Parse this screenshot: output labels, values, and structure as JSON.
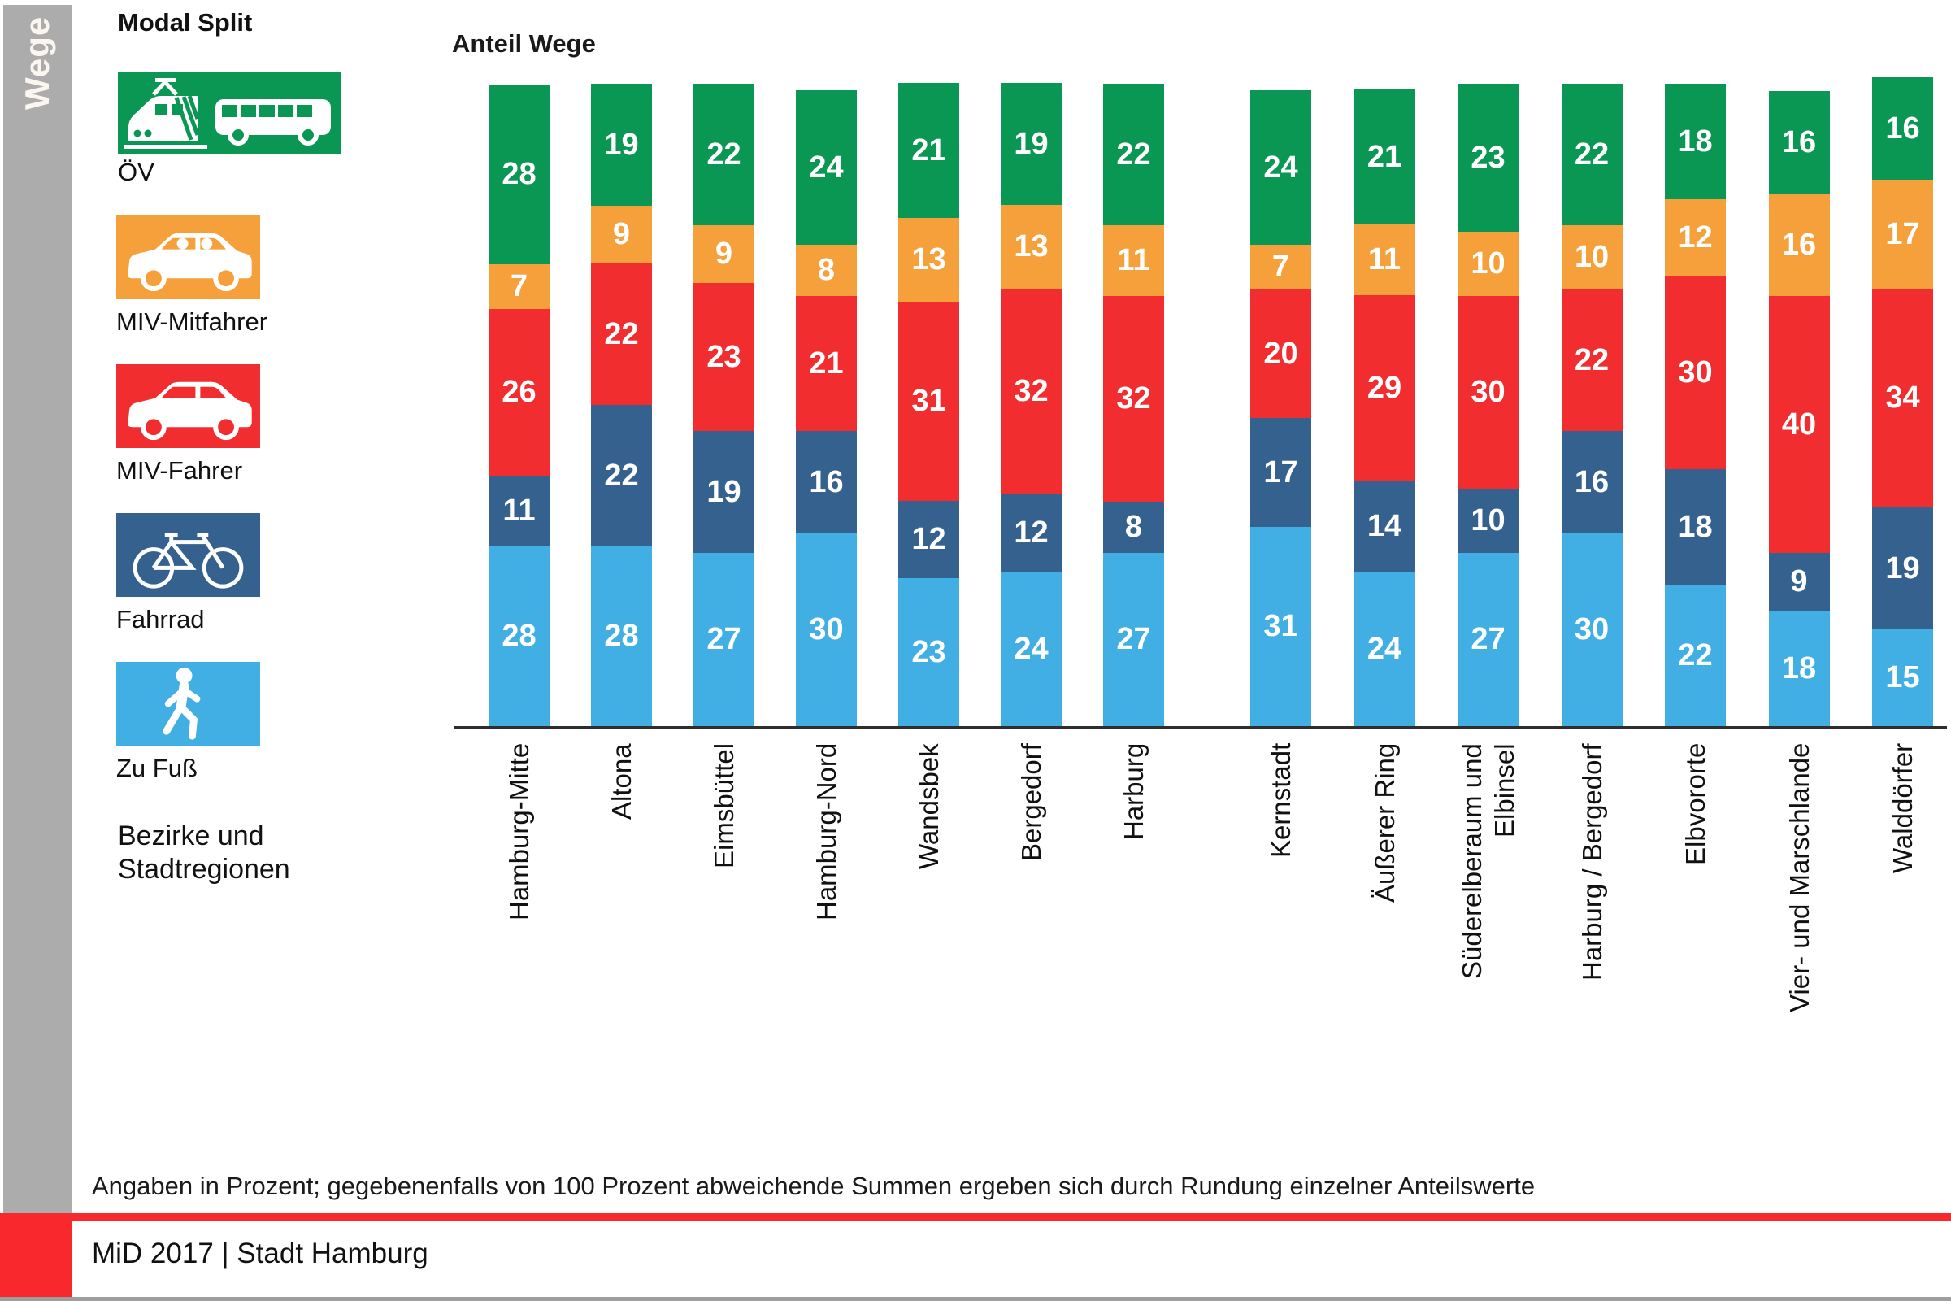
{
  "sidebar": {
    "label": "Wege"
  },
  "legend": {
    "title": "Modal Split",
    "items": [
      {
        "id": "oev",
        "label": "ÖV",
        "color": "#0a9653"
      },
      {
        "id": "miv_mitfahrer",
        "label": "MIV-Mitfahrer",
        "color": "#f5a03a"
      },
      {
        "id": "miv_fahrer",
        "label": "MIV-Fahrer",
        "color": "#f22d30"
      },
      {
        "id": "fahrrad",
        "label": "Fahrrad",
        "color": "#35618e"
      },
      {
        "id": "zu_fuss",
        "label": "Zu Fuß",
        "color": "#41afe4"
      }
    ],
    "axis_caption": [
      "Bezirke und",
      "Stadtregionen"
    ]
  },
  "chart_data": {
    "type": "bar",
    "stacked": true,
    "title": "Anteil Wege",
    "unit": "percent",
    "ylim": [
      0,
      100
    ],
    "legend_position": "left",
    "series_top_to_bottom": [
      "oev",
      "miv_mitfahrer",
      "miv_fahrer",
      "fahrrad",
      "zu_fuss"
    ],
    "series_names": {
      "oev": "ÖV",
      "miv_mitfahrer": "MIV-Mitfahrer",
      "miv_fahrer": "MIV-Fahrer",
      "fahrrad": "Fahrrad",
      "zu_fuss": "Zu Fuß"
    },
    "bars": [
      {
        "id": "hamburg-mitte",
        "group": "Bezirke",
        "label": [
          "Hamburg-Mitte"
        ],
        "values": {
          "oev": 28,
          "miv_mitfahrer": 7,
          "miv_fahrer": 26,
          "fahrrad": 11,
          "zu_fuss": 28
        }
      },
      {
        "id": "altona",
        "group": "Bezirke",
        "label": [
          "Altona"
        ],
        "values": {
          "oev": 19,
          "miv_mitfahrer": 9,
          "miv_fahrer": 22,
          "fahrrad": 22,
          "zu_fuss": 28
        }
      },
      {
        "id": "eimsbuettel",
        "group": "Bezirke",
        "label": [
          "Eimsbüttel"
        ],
        "values": {
          "oev": 22,
          "miv_mitfahrer": 9,
          "miv_fahrer": 23,
          "fahrrad": 19,
          "zu_fuss": 27
        }
      },
      {
        "id": "hamburg-nord",
        "group": "Bezirke",
        "label": [
          "Hamburg-Nord"
        ],
        "values": {
          "oev": 24,
          "miv_mitfahrer": 8,
          "miv_fahrer": 21,
          "fahrrad": 16,
          "zu_fuss": 30
        }
      },
      {
        "id": "wandsbek",
        "group": "Bezirke",
        "label": [
          "Wandsbek"
        ],
        "values": {
          "oev": 21,
          "miv_mitfahrer": 13,
          "miv_fahrer": 31,
          "fahrrad": 12,
          "zu_fuss": 23
        }
      },
      {
        "id": "bergedorf",
        "group": "Bezirke",
        "label": [
          "Bergedorf"
        ],
        "values": {
          "oev": 19,
          "miv_mitfahrer": 13,
          "miv_fahrer": 32,
          "fahrrad": 12,
          "zu_fuss": 24
        }
      },
      {
        "id": "harburg",
        "group": "Bezirke",
        "label": [
          "Harburg"
        ],
        "values": {
          "oev": 22,
          "miv_mitfahrer": 11,
          "miv_fahrer": 32,
          "fahrrad": 8,
          "zu_fuss": 27
        }
      },
      {
        "id": "kernstadt",
        "group": "Stadtregionen",
        "label": [
          "Kernstadt"
        ],
        "values": {
          "oev": 24,
          "miv_mitfahrer": 7,
          "miv_fahrer": 20,
          "fahrrad": 17,
          "zu_fuss": 31
        }
      },
      {
        "id": "aeusserer-ring",
        "group": "Stadtregionen",
        "label": [
          "Äußerer Ring"
        ],
        "values": {
          "oev": 21,
          "miv_mitfahrer": 11,
          "miv_fahrer": 29,
          "fahrrad": 14,
          "zu_fuss": 24
        }
      },
      {
        "id": "suederelberaum",
        "group": "Stadtregionen",
        "label": [
          "Süderelberaum und",
          "Elbinsel"
        ],
        "values": {
          "oev": 23,
          "miv_mitfahrer": 10,
          "miv_fahrer": 30,
          "fahrrad": 10,
          "zu_fuss": 27
        }
      },
      {
        "id": "harburg-bergedorf",
        "group": "Stadtregionen",
        "label": [
          "Harburg / Bergedorf"
        ],
        "values": {
          "oev": 22,
          "miv_mitfahrer": 10,
          "miv_fahrer": 22,
          "fahrrad": 16,
          "zu_fuss": 30
        }
      },
      {
        "id": "elbvororte",
        "group": "Stadtregionen",
        "label": [
          "Elbvororte"
        ],
        "values": {
          "oev": 18,
          "miv_mitfahrer": 12,
          "miv_fahrer": 30,
          "fahrrad": 18,
          "zu_fuss": 22
        }
      },
      {
        "id": "vier-und-marschlande",
        "group": "Stadtregionen",
        "label": [
          "Vier- und Marschlande"
        ],
        "values": {
          "oev": 16,
          "miv_mitfahrer": 16,
          "miv_fahrer": 40,
          "fahrrad": 9,
          "zu_fuss": 18
        }
      },
      {
        "id": "walddoerfer",
        "group": "Stadtregionen",
        "label": [
          "Walddörfer"
        ],
        "values": {
          "oev": 16,
          "miv_mitfahrer": 17,
          "miv_fahrer": 34,
          "fahrrad": 19,
          "zu_fuss": 15
        }
      }
    ]
  },
  "footnote": {
    "text": "Angaben in Prozent; gegebenenfalls von 100 Prozent abweichende Summen ergeben sich durch Rundung einzelner Anteilswerte"
  },
  "footer": {
    "text": "MiD 2017 | Stadt Hamburg",
    "accent_color": "#f8282d",
    "rail_color": "#acacac"
  }
}
